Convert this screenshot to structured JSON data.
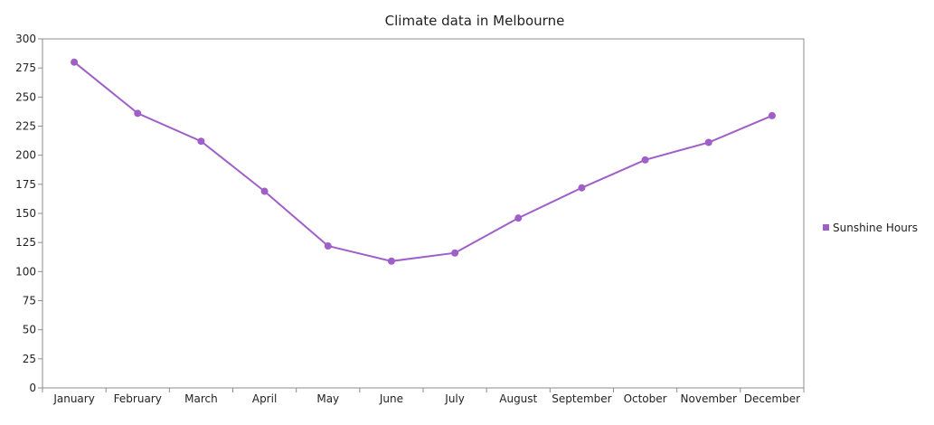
{
  "chart_data": {
    "type": "line",
    "title": "Climate data in Melbourne",
    "xlabel": "",
    "ylabel": "",
    "categories": [
      "January",
      "February",
      "March",
      "April",
      "May",
      "June",
      "July",
      "August",
      "September",
      "October",
      "November",
      "December"
    ],
    "series": [
      {
        "name": "Sunshine Hours",
        "values": [
          280,
          236,
          212,
          169,
          122,
          109,
          116,
          146,
          172,
          196,
          211,
          234
        ],
        "color": "#a05fc8"
      }
    ],
    "ylim": [
      0,
      300
    ],
    "yticks": [
      "0",
      "25",
      "50",
      "75",
      "100",
      "125",
      "150",
      "175",
      "200",
      "225",
      "250",
      "275",
      "300"
    ],
    "grid": false,
    "legend_position": "right",
    "colors": {
      "axis": "#8c8c8c",
      "text": "#222222"
    }
  }
}
